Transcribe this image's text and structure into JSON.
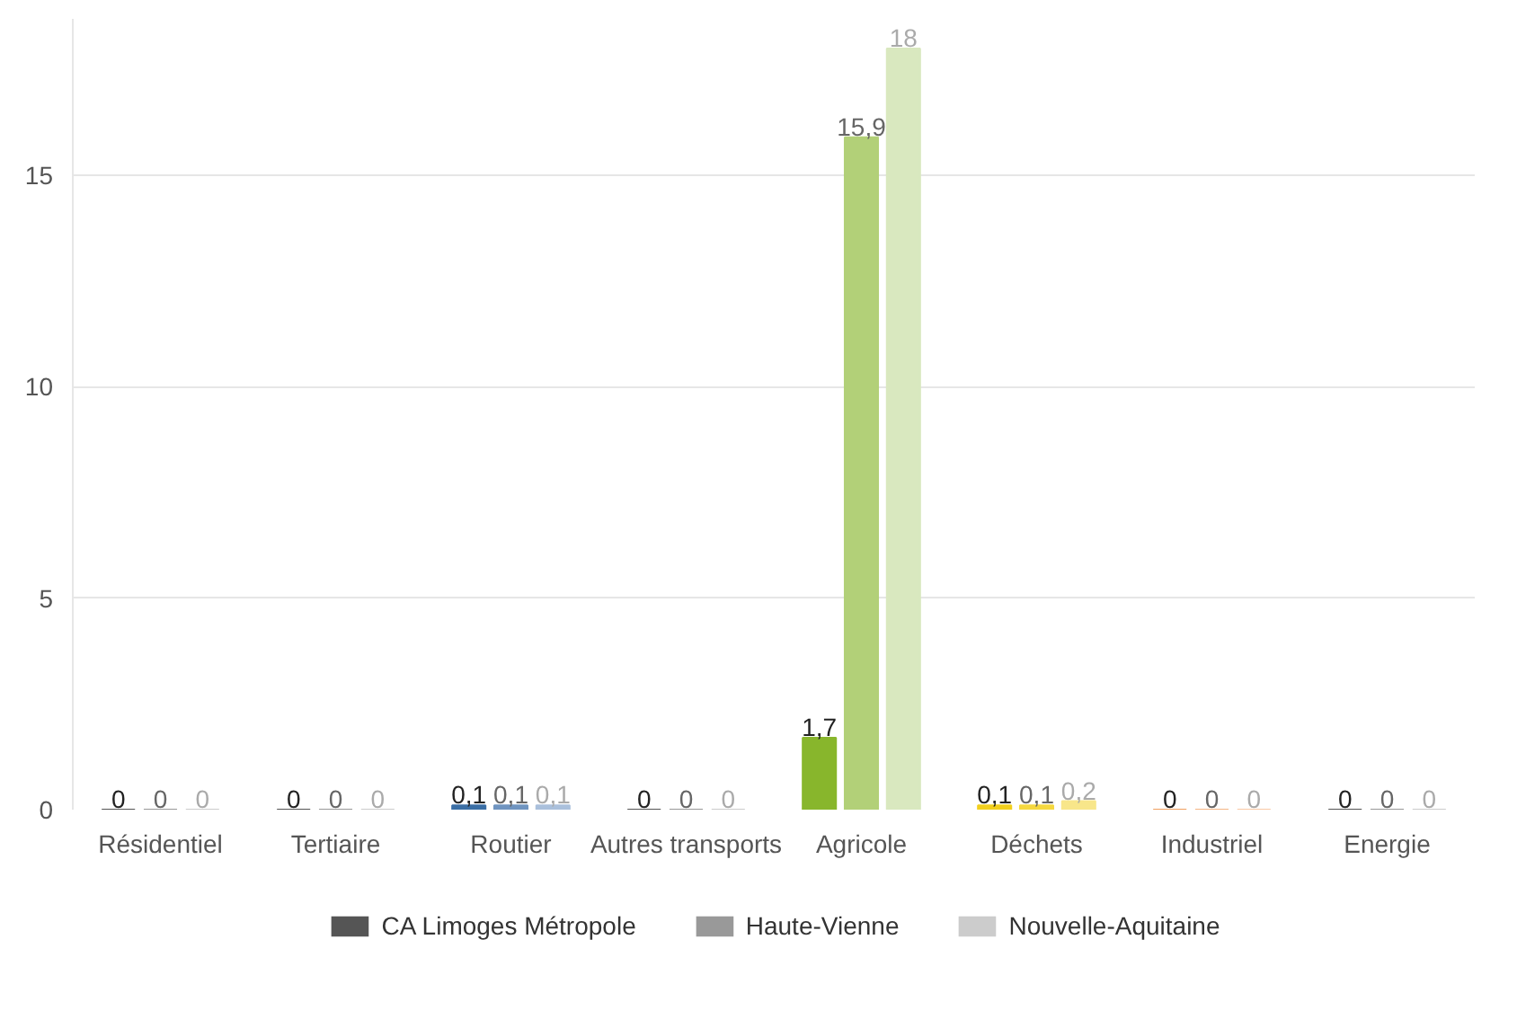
{
  "chart_data": {
    "type": "bar",
    "categories": [
      "Résidentiel",
      "Tertiaire",
      "Routier",
      "Autres transports",
      "Agricole",
      "Déchets",
      "Industriel",
      "Energie"
    ],
    "series": [
      {
        "name": "CA Limoges Métropole",
        "color": "#555555",
        "values": [
          0,
          0,
          0.1,
          0,
          1.7,
          0.1,
          0,
          0
        ],
        "value_labels": [
          "0",
          "0",
          "0,1",
          "0",
          "1,7",
          "0,1",
          "0",
          "0"
        ],
        "colors": [
          "#555555",
          "#555555",
          "#3a6ea5",
          "#555555",
          "#88b62c",
          "#f2cf1d",
          "#f0a060",
          "#555555"
        ]
      },
      {
        "name": "Haute-Vienne",
        "color": "#999999",
        "values": [
          0,
          0,
          0.1,
          0,
          15.9,
          0.1,
          0,
          0
        ],
        "value_labels": [
          "0",
          "0",
          "0,1",
          "0",
          "15,9",
          "0,1",
          "0",
          "0"
        ],
        "colors": [
          "#999999",
          "#999999",
          "#6f94c0",
          "#999999",
          "#b2d078",
          "#f5d840",
          "#f4b585",
          "#999999"
        ]
      },
      {
        "name": "Nouvelle-Aquitaine",
        "color": "#cccccc",
        "values": [
          0,
          0,
          0.1,
          0,
          18,
          0.2,
          0,
          0
        ],
        "value_labels": [
          "0",
          "0",
          "0,1",
          "0",
          "18",
          "0,2",
          "0",
          "0"
        ],
        "colors": [
          "#cccccc",
          "#cccccc",
          "#aac0dc",
          "#cccccc",
          "#d9e8bf",
          "#f8e68a",
          "#f9c9a5",
          "#cccccc"
        ]
      }
    ],
    "ylim": [
      0,
      18.7
    ],
    "yticks": [
      0,
      5,
      10,
      15
    ],
    "grid": "y",
    "legend": "bottom"
  }
}
